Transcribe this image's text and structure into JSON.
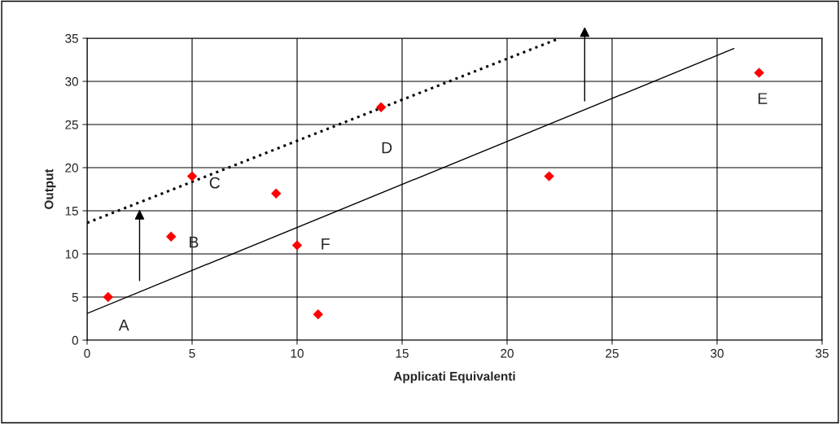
{
  "chart_data": {
    "type": "scatter",
    "xlabel": "Applicati Equivalenti",
    "ylabel": "Output",
    "xlim": [
      0,
      35
    ],
    "ylim": [
      0,
      35
    ],
    "xticks": [
      0,
      5,
      10,
      15,
      20,
      25,
      30,
      35
    ],
    "yticks": [
      0,
      5,
      10,
      15,
      20,
      25,
      30,
      35
    ],
    "grid": true,
    "legend": false,
    "series": [
      {
        "type": "scatter",
        "color": "#ff0000",
        "marker": "diamond",
        "x": [
          1,
          4,
          5,
          9,
          10,
          11,
          14,
          22,
          32
        ],
        "values": [
          5,
          12,
          19,
          17,
          11,
          3,
          27,
          19,
          31
        ]
      },
      {
        "type": "line",
        "color": "#000000",
        "line_style": "solid",
        "marker": "none",
        "x": [
          0,
          30.8
        ],
        "values": [
          3.1,
          33.8
        ]
      },
      {
        "type": "line",
        "color": "#000000",
        "line_style": "dotted",
        "marker": "none",
        "x": [
          0,
          22.5
        ],
        "values": [
          13.6,
          35
        ]
      }
    ],
    "annotations": [
      {
        "text": "A",
        "x": 1,
        "y": 5
      },
      {
        "text": "B",
        "x": 4,
        "y": 12
      },
      {
        "text": "C",
        "x": 5,
        "y": 19
      },
      {
        "text": "D",
        "x": 14,
        "y": 27
      },
      {
        "text": "E",
        "x": 32,
        "y": 31
      },
      {
        "text": "F",
        "x": 10,
        "y": 11
      }
    ]
  }
}
